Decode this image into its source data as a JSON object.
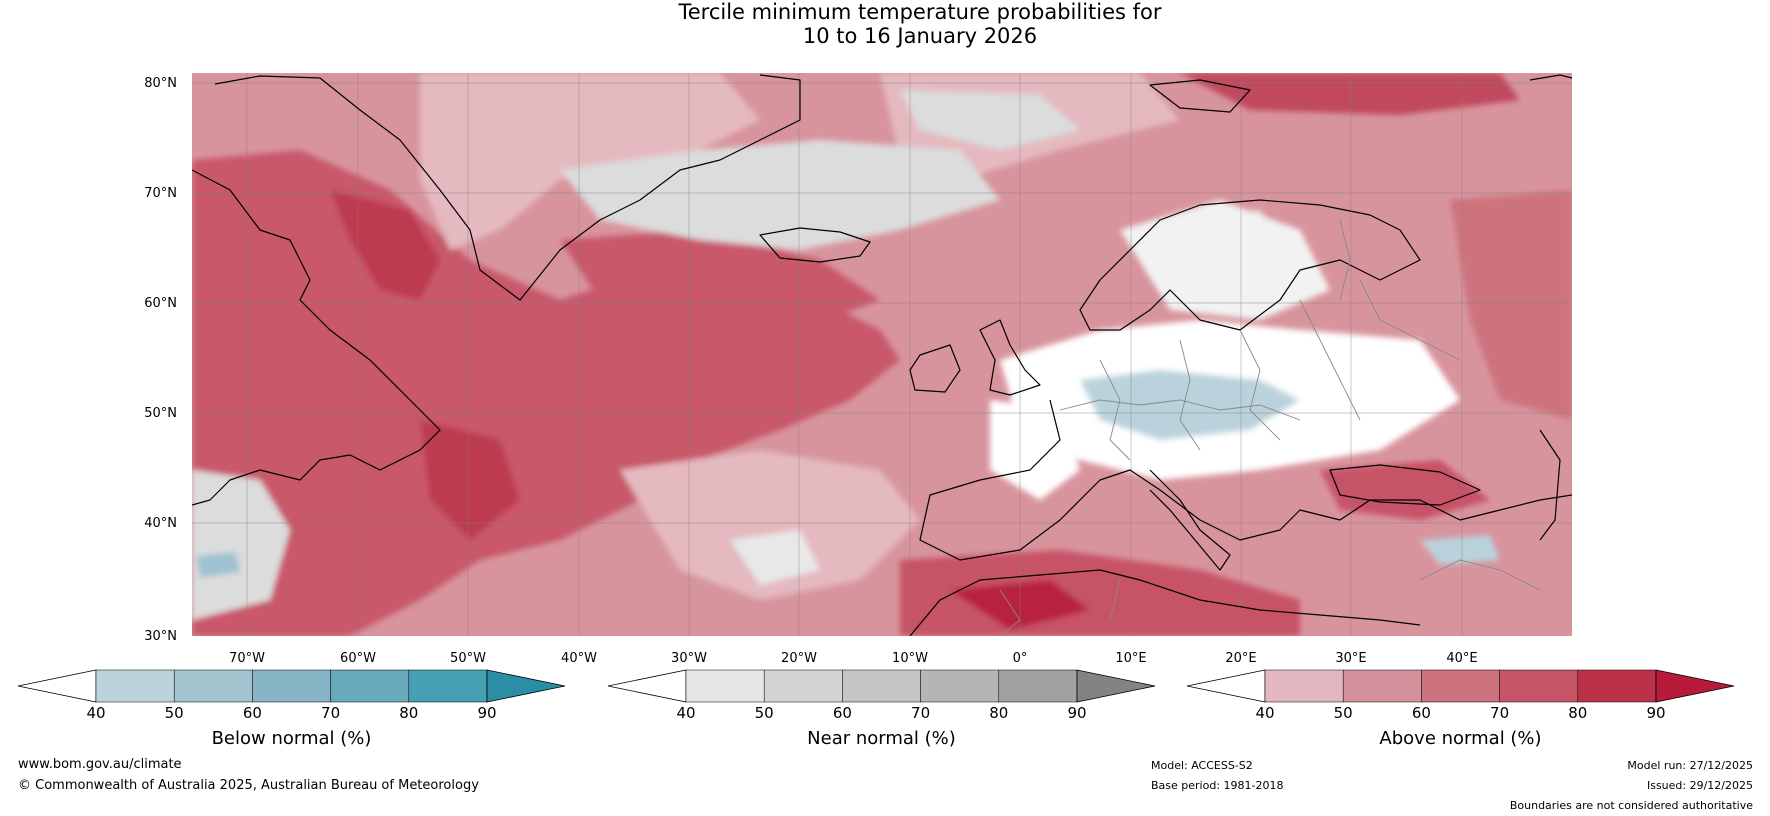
{
  "title": {
    "line1": "Tercile minimum temperature probabilities for",
    "line2": "10 to 16 January 2026"
  },
  "map": {
    "lat_labels": [
      "80°N",
      "70°N",
      "60°N",
      "50°N",
      "40°N",
      "30°N"
    ],
    "lon_labels": [
      "70°W",
      "60°W",
      "50°W",
      "40°W",
      "30°W",
      "20°W",
      "10°W",
      "0°",
      "10°E",
      "20°E",
      "30°E",
      "40°E"
    ],
    "colors": {
      "ocean_base": "#d8949d",
      "above_light": "#e4b9c0",
      "above_mid": "#d4848f",
      "above_strong": "#c8596b",
      "above_max": "#b8243f",
      "near_normal": "#dcdcdc",
      "white": "#ffffff",
      "below_normal": "#b9d2dc",
      "coast": "#000000",
      "border": "#888888"
    }
  },
  "colorbars": [
    {
      "name": "below",
      "title": "Below normal (%)",
      "ticks": [
        "40",
        "50",
        "60",
        "70",
        "80",
        "90"
      ],
      "colors": [
        "#ffffff",
        "#bcd3dc",
        "#a3c3ce",
        "#87b4c4",
        "#69a9bc",
        "#45a0b4",
        "#2a8ea6"
      ]
    },
    {
      "name": "near",
      "title": "Near normal (%)",
      "ticks": [
        "40",
        "50",
        "60",
        "70",
        "80",
        "90"
      ],
      "colors": [
        "#ffffff",
        "#e6e6e6",
        "#d4d4d4",
        "#c5c5c5",
        "#b4b5b4",
        "#a1a1a1",
        "#838383"
      ]
    },
    {
      "name": "above",
      "title": "Above normal (%)",
      "ticks": [
        "40",
        "50",
        "60",
        "70",
        "80",
        "90"
      ],
      "colors": [
        "#ffffff",
        "#e3b7bf",
        "#d5919b",
        "#cd737e",
        "#c75366",
        "#bb3148",
        "#b71a3a"
      ]
    }
  ],
  "footer": {
    "website": "www.bom.gov.au/climate",
    "copyright": "© Commonwealth of Australia 2025, Australian Bureau of Meteorology",
    "model": "Model: ACCESS-S2",
    "base_period": "Base period: 1981-2018",
    "model_run": "Model run: 27/12/2025",
    "issued": "Issued: 29/12/2025",
    "disclaimer": "Boundaries are not considered authoritative"
  }
}
